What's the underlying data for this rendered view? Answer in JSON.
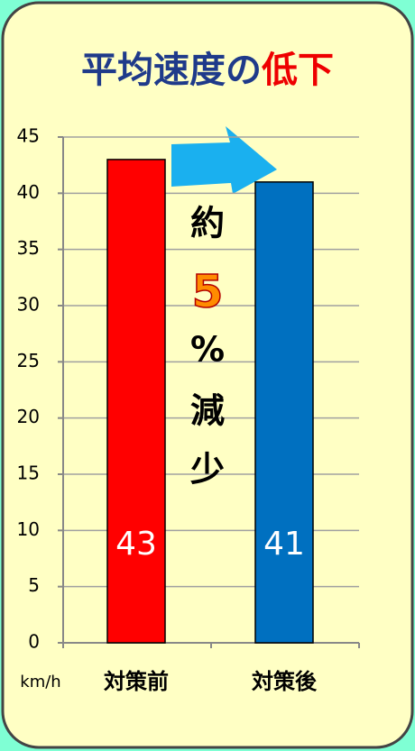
{
  "chart_data": {
    "type": "bar",
    "title": [
      {
        "text": "平均速度の",
        "color": "#1f3a8a"
      },
      {
        "text": "低下",
        "color": "#ee0000"
      }
    ],
    "annotation": [
      {
        "text": "約",
        "color": "#000000"
      },
      {
        "text": "5",
        "color": "#ff8c00"
      },
      {
        "text": "%",
        "color": "#000000"
      },
      {
        "text": "減",
        "color": "#000000"
      },
      {
        "text": "少",
        "color": "#000000"
      }
    ],
    "y_label": "km/h",
    "categories": [
      "対策前",
      "対策後"
    ],
    "values": [
      43,
      41
    ],
    "colors": [
      "#ff0000",
      "#0070c0"
    ],
    "ylim": [
      0,
      45
    ],
    "yticks": [
      0,
      5,
      10,
      15,
      20,
      25,
      30,
      35,
      40,
      45
    ],
    "grid": true
  }
}
